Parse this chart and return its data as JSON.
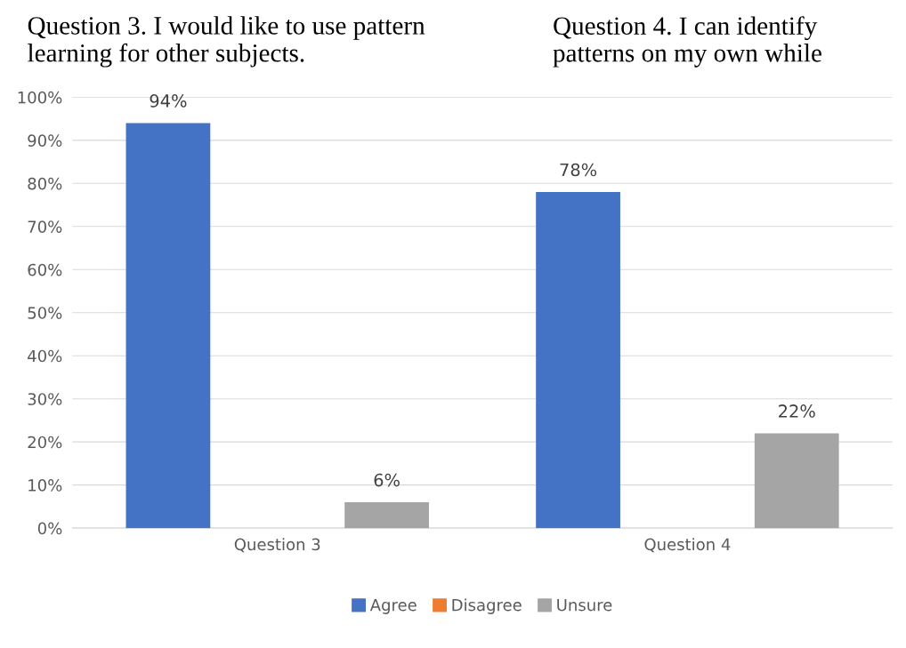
{
  "chart_data": {
    "type": "bar",
    "categories": [
      "Question 3",
      "Question 4"
    ],
    "series": [
      {
        "name": "Agree",
        "color": "#4472c4",
        "values": [
          94,
          78
        ],
        "value_labels": [
          "94%",
          "78%"
        ]
      },
      {
        "name": "Disagree",
        "color": "#ed7d31",
        "values": [
          0,
          0
        ],
        "value_labels": [
          null,
          null
        ]
      },
      {
        "name": "Unsure",
        "color": "#a5a5a5",
        "values": [
          6,
          22
        ],
        "value_labels": [
          "6%",
          "22%"
        ]
      }
    ],
    "annotations": [
      "Question 3. I would like to use pattern\nlearning for other subjects.",
      "Question 4. I can identify\npatterns on my own while"
    ],
    "ylim": [
      0,
      100
    ],
    "yticks": [
      {
        "value": 0,
        "label": "0%"
      },
      {
        "value": 10,
        "label": "10%"
      },
      {
        "value": 20,
        "label": "20%"
      },
      {
        "value": 30,
        "label": "30%"
      },
      {
        "value": 40,
        "label": "40%"
      },
      {
        "value": 50,
        "label": "50%"
      },
      {
        "value": 60,
        "label": "60%"
      },
      {
        "value": 70,
        "label": "70%"
      },
      {
        "value": 80,
        "label": "80%"
      },
      {
        "value": 90,
        "label": "90%"
      },
      {
        "value": 100,
        "label": "100%"
      }
    ],
    "grid": "y",
    "legend": "bottom"
  }
}
